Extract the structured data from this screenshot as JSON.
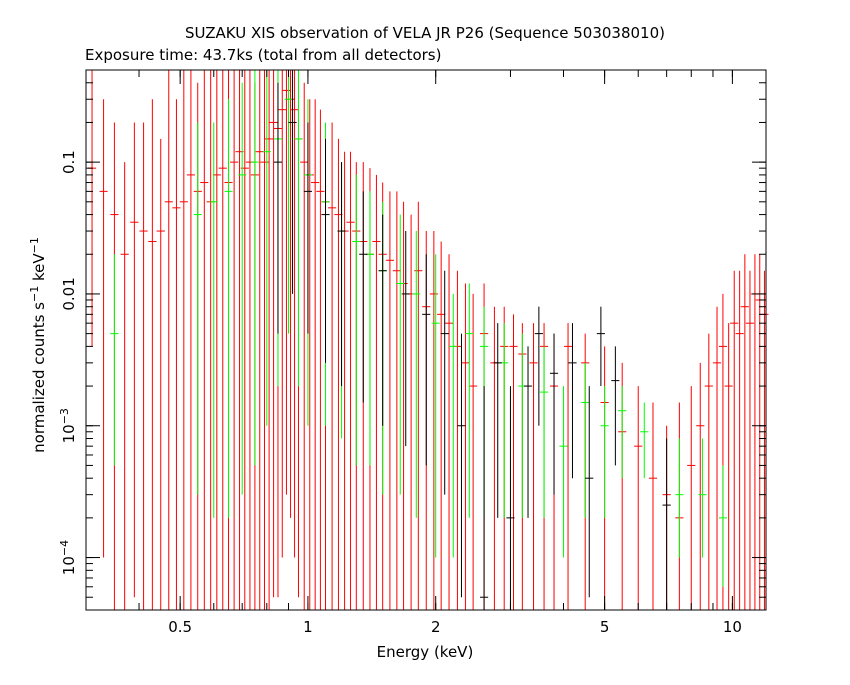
{
  "chart_data": {
    "type": "scatter",
    "title": "SUZAKU XIS observation of VELA JR P26 (Sequence 503038010)",
    "subtitle": "Exposure time: 43.7ks (total from all detectors)",
    "xlabel": "Energy (keV)",
    "ylabel": {
      "text": "normalized counts s",
      "sup1": "−1",
      "mid": " keV",
      "sup2": "−1"
    },
    "xscale": "log",
    "yscale": "log",
    "xlim": [
      0.3,
      12
    ],
    "ylim": [
      4e-05,
      0.5
    ],
    "grid": false,
    "x_ticks": [
      {
        "value": 0.5,
        "label": "0.5"
      },
      {
        "value": 1,
        "label": "1"
      },
      {
        "value": 2,
        "label": "2"
      },
      {
        "value": 5,
        "label": "5"
      },
      {
        "value": 10,
        "label": "10"
      }
    ],
    "y_ticks": [
      {
        "value": 0.0001,
        "label": "10",
        "sup": "−4"
      },
      {
        "value": 0.001,
        "label": "10",
        "sup": "−3"
      },
      {
        "value": 0.01,
        "label": "0.01",
        "sup": ""
      },
      {
        "value": 0.1,
        "label": "0.1",
        "sup": ""
      }
    ],
    "series": [
      {
        "color": "#ff0000",
        "points": [
          [
            0.31,
            0.09,
            0.004,
            0.5
          ],
          [
            0.33,
            0.06,
            0.0001,
            0.3
          ],
          [
            0.35,
            0.04,
            4e-05,
            0.2
          ],
          [
            0.37,
            0.02,
            4e-05,
            0.1
          ],
          [
            0.39,
            0.035,
            5e-05,
            0.2
          ],
          [
            0.41,
            0.03,
            4e-05,
            0.2
          ],
          [
            0.43,
            0.025,
            4e-05,
            0.3
          ],
          [
            0.45,
            0.03,
            4e-05,
            0.15
          ],
          [
            0.47,
            0.05,
            4e-05,
            0.5
          ],
          [
            0.49,
            0.045,
            4e-05,
            0.3
          ],
          [
            0.51,
            0.05,
            4e-05,
            0.5
          ],
          [
            0.53,
            0.08,
            4e-05,
            0.5
          ],
          [
            0.55,
            0.06,
            4e-05,
            0.4
          ],
          [
            0.57,
            0.07,
            4e-05,
            0.5
          ],
          [
            0.59,
            0.05,
            4e-05,
            0.5
          ],
          [
            0.61,
            0.08,
            4e-05,
            0.5
          ],
          [
            0.63,
            0.09,
            4e-05,
            0.5
          ],
          [
            0.65,
            0.07,
            4e-05,
            0.5
          ],
          [
            0.67,
            0.1,
            4e-05,
            0.5
          ],
          [
            0.69,
            0.12,
            4e-05,
            0.5
          ],
          [
            0.71,
            0.09,
            4e-05,
            0.5
          ],
          [
            0.73,
            0.1,
            4e-05,
            0.5
          ],
          [
            0.75,
            0.08,
            4e-05,
            0.4
          ],
          [
            0.77,
            0.12,
            4e-05,
            0.5
          ],
          [
            0.79,
            0.1,
            4e-05,
            0.5
          ],
          [
            0.81,
            0.15,
            4e-05,
            0.5
          ],
          [
            0.83,
            0.2,
            5e-05,
            0.5
          ],
          [
            0.85,
            0.18,
            5e-05,
            0.5
          ],
          [
            0.87,
            0.25,
            0.0001,
            0.5
          ],
          [
            0.89,
            0.35,
            0.0003,
            0.5
          ],
          [
            0.91,
            0.3,
            0.0002,
            0.5
          ],
          [
            0.93,
            0.25,
            0.0001,
            0.5
          ],
          [
            0.95,
            0.15,
            5e-05,
            0.5
          ],
          [
            0.98,
            0.1,
            4e-05,
            0.4
          ],
          [
            1.01,
            0.08,
            4e-05,
            0.3
          ],
          [
            1.04,
            0.07,
            4e-05,
            0.3
          ],
          [
            1.07,
            0.06,
            4e-05,
            0.25
          ],
          [
            1.1,
            0.05,
            4e-05,
            0.2
          ],
          [
            1.14,
            0.045,
            4e-05,
            0.2
          ],
          [
            1.18,
            0.04,
            4e-05,
            0.15
          ],
          [
            1.22,
            0.03,
            4e-05,
            0.12
          ],
          [
            1.26,
            0.035,
            4e-05,
            0.12
          ],
          [
            1.3,
            0.03,
            4e-05,
            0.1
          ],
          [
            1.35,
            0.025,
            4e-05,
            0.1
          ],
          [
            1.4,
            0.02,
            4e-05,
            0.09
          ],
          [
            1.45,
            0.025,
            4e-05,
            0.08
          ],
          [
            1.5,
            0.02,
            4e-05,
            0.07
          ],
          [
            1.56,
            0.018,
            4e-05,
            0.06
          ],
          [
            1.62,
            0.015,
            4e-05,
            0.06
          ],
          [
            1.68,
            0.012,
            4e-05,
            0.05
          ],
          [
            1.75,
            0.01,
            4e-05,
            0.04
          ],
          [
            1.82,
            0.015,
            4e-05,
            0.05
          ],
          [
            1.9,
            0.008,
            4e-05,
            0.03
          ],
          [
            1.98,
            0.01,
            4e-05,
            0.03
          ],
          [
            2.06,
            0.007,
            4e-05,
            0.025
          ],
          [
            2.15,
            0.006,
            4e-05,
            0.02
          ],
          [
            2.25,
            0.004,
            4e-05,
            0.015
          ],
          [
            2.35,
            0.003,
            4e-05,
            0.012
          ],
          [
            2.45,
            0.002,
            4e-05,
            0.01
          ],
          [
            2.6,
            0.005,
            4e-05,
            0.012
          ],
          [
            2.75,
            0.003,
            4e-05,
            0.008
          ],
          [
            2.9,
            0.004,
            4e-05,
            0.008
          ],
          [
            3.05,
            0.004,
            4e-05,
            0.007
          ],
          [
            3.2,
            0.0035,
            4e-05,
            0.006
          ],
          [
            3.4,
            0.003,
            4e-05,
            0.006
          ],
          [
            3.6,
            0.004,
            4e-05,
            0.006
          ],
          [
            3.8,
            0.002,
            4e-05,
            0.005
          ],
          [
            4.1,
            0.004,
            4e-05,
            0.006
          ],
          [
            4.5,
            0.003,
            4e-05,
            0.005
          ],
          [
            5.0,
            0.0015,
            4e-05,
            0.004
          ],
          [
            5.5,
            0.0009,
            4e-05,
            0.003
          ],
          [
            6.0,
            0.0007,
            4e-05,
            0.002
          ],
          [
            6.5,
            0.0004,
            4e-05,
            0.0015
          ],
          [
            7.0,
            0.0003,
            4e-05,
            0.001
          ],
          [
            7.5,
            0.0002,
            4e-05,
            0.0015
          ],
          [
            8.0,
            0.0005,
            4e-05,
            0.002
          ],
          [
            8.4,
            0.001,
            4e-05,
            0.003
          ],
          [
            8.8,
            0.002,
            4e-05,
            0.005
          ],
          [
            9.2,
            0.003,
            4e-05,
            0.008
          ],
          [
            9.5,
            0.004,
            4e-05,
            0.01
          ],
          [
            9.8,
            0.002,
            4e-05,
            0.006
          ],
          [
            10.1,
            0.006,
            4e-05,
            0.015
          ],
          [
            10.4,
            0.005,
            4e-05,
            0.015
          ],
          [
            10.7,
            0.008,
            4e-05,
            0.02
          ],
          [
            11.0,
            0.006,
            4e-05,
            0.015
          ],
          [
            11.3,
            0.01,
            4e-05,
            0.02
          ],
          [
            11.6,
            0.009,
            4e-05,
            0.02
          ],
          [
            11.9,
            0.007,
            4e-05,
            0.015
          ]
        ]
      },
      {
        "color": "#00ff00",
        "points": [
          [
            0.35,
            0.005,
            0.0005,
            0.02
          ],
          [
            0.55,
            0.04,
            0.0003,
            0.2
          ],
          [
            0.6,
            0.05,
            0.0002,
            0.2
          ],
          [
            0.65,
            0.06,
            0.0002,
            0.3
          ],
          [
            0.7,
            0.08,
            0.0003,
            0.4
          ],
          [
            0.75,
            0.1,
            0.0005,
            0.5
          ],
          [
            0.8,
            0.12,
            0.001,
            0.5
          ],
          [
            0.85,
            0.15,
            0.002,
            0.5
          ],
          [
            0.9,
            0.3,
            0.005,
            0.5
          ],
          [
            0.95,
            0.15,
            0.002,
            0.5
          ],
          [
            1.0,
            0.08,
            0.001,
            0.3
          ],
          [
            1.1,
            0.05,
            0.001,
            0.2
          ],
          [
            1.2,
            0.03,
            0.0008,
            0.1
          ],
          [
            1.3,
            0.025,
            0.0005,
            0.08
          ],
          [
            1.4,
            0.02,
            0.0005,
            0.06
          ],
          [
            1.5,
            0.015,
            0.0003,
            0.05
          ],
          [
            1.65,
            0.012,
            0.0003,
            0.04
          ],
          [
            1.8,
            0.01,
            0.0002,
            0.03
          ],
          [
            2.0,
            0.006,
            0.0001,
            0.02
          ],
          [
            2.2,
            0.004,
            0.0001,
            0.01
          ],
          [
            2.4,
            0.005,
            0.0002,
            0.012
          ],
          [
            2.6,
            0.004,
            0.0002,
            0.008
          ],
          [
            2.9,
            0.003,
            0.0002,
            0.006
          ],
          [
            3.2,
            0.002,
            0.0002,
            0.005
          ],
          [
            3.6,
            0.0018,
            0.0002,
            0.004
          ],
          [
            4.0,
            0.0007,
            0.0001,
            0.002
          ],
          [
            4.5,
            0.0015,
            0.0002,
            0.003
          ],
          [
            5.0,
            0.001,
            0.0002,
            0.002
          ],
          [
            5.5,
            0.0013,
            0.0004,
            0.002
          ],
          [
            6.2,
            0.0009,
            0.0004,
            0.0015
          ],
          [
            7.5,
            0.0003,
            0.0001,
            0.0008
          ],
          [
            8.5,
            0.0003,
            0.0001,
            0.0008
          ],
          [
            9.5,
            0.0002,
            6e-05,
            0.0005
          ]
        ]
      },
      {
        "color": "#000000",
        "points": [
          [
            0.85,
            0.1,
            0.005,
            0.4
          ],
          [
            0.92,
            0.2,
            0.01,
            0.5
          ],
          [
            1.0,
            0.06,
            0.005,
            0.2
          ],
          [
            1.1,
            0.04,
            0.003,
            0.15
          ],
          [
            1.2,
            0.03,
            0.002,
            0.1
          ],
          [
            1.35,
            0.02,
            0.0015,
            0.06
          ],
          [
            1.5,
            0.015,
            0.001,
            0.04
          ],
          [
            1.7,
            0.01,
            0.0007,
            0.03
          ],
          [
            1.9,
            0.007,
            0.0005,
            0.02
          ],
          [
            2.1,
            0.005,
            0.0003,
            0.015
          ],
          [
            2.3,
            0.001,
            5e-05,
            0.005
          ],
          [
            2.6,
            5e-05,
            4e-05,
            0.002
          ],
          [
            2.8,
            0.003,
            0.0002,
            0.006
          ],
          [
            3.0,
            0.0002,
            4e-05,
            0.002
          ],
          [
            3.3,
            0.002,
            0.0002,
            0.004
          ],
          [
            3.5,
            0.005,
            0.001,
            0.008
          ],
          [
            3.8,
            0.0025,
            0.0003,
            0.005
          ],
          [
            4.2,
            0.003,
            0.0004,
            0.006
          ],
          [
            4.6,
            0.0004,
            5e-05,
            0.002
          ],
          [
            4.9,
            0.005,
            0.002,
            0.008
          ],
          [
            5.3,
            0.0022,
            0.0005,
            0.004
          ],
          [
            7.0,
            0.00025,
            4e-05,
            0.0008
          ]
        ]
      }
    ]
  }
}
